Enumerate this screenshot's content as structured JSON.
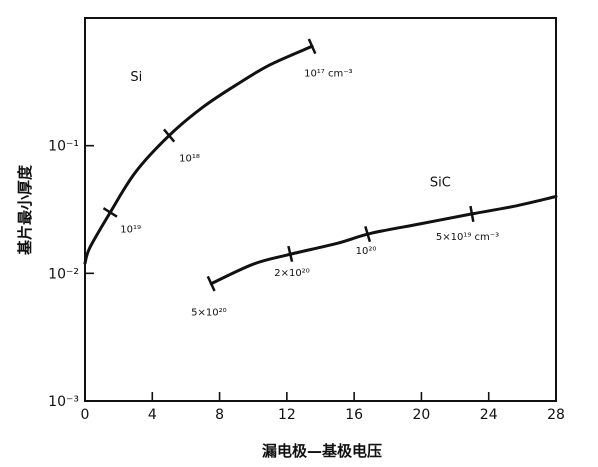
{
  "chart_data": {
    "type": "line",
    "xlabel": "漏电极—基极电压",
    "ylabel": "基片最小厚度",
    "xlim": [
      0,
      28
    ],
    "ylim": [
      0.001,
      1
    ],
    "y_scale": "log",
    "grid": false,
    "x_ticks": [
      {
        "value": 0,
        "label": "0"
      },
      {
        "value": 4,
        "label": "4"
      },
      {
        "value": 8,
        "label": "8"
      },
      {
        "value": 12,
        "label": "12"
      },
      {
        "value": 16,
        "label": "16"
      },
      {
        "value": 20,
        "label": "20"
      },
      {
        "value": 24,
        "label": "24"
      },
      {
        "value": 28,
        "label": "28"
      }
    ],
    "y_ticks": [
      {
        "value": 0.1,
        "label": "10⁻¹"
      },
      {
        "value": 0.01,
        "label": "10⁻²"
      },
      {
        "value": 0.001,
        "label": "10⁻³"
      }
    ],
    "series": [
      {
        "name": "Si",
        "color": "#111111",
        "x": [
          0,
          0.3,
          1.5,
          3.0,
          5.0,
          7.0,
          9.0,
          11.0,
          13.5
        ],
        "y": [
          0.012,
          0.016,
          0.03,
          0.062,
          0.12,
          0.2,
          0.3,
          0.43,
          0.6
        ],
        "markers": [
          {
            "x": 1.5,
            "y": 0.03,
            "label": "10¹⁹"
          },
          {
            "x": 5.0,
            "y": 0.12,
            "label": "10¹⁸"
          },
          {
            "x": 13.5,
            "y": 0.6,
            "label": "10¹⁷ cm⁻³"
          }
        ]
      },
      {
        "name": "SiC",
        "color": "#111111",
        "x": [
          7.5,
          10,
          12,
          15,
          17,
          20,
          23,
          25.5,
          28
        ],
        "y": [
          0.0083,
          0.0118,
          0.0139,
          0.0172,
          0.0206,
          0.0245,
          0.0292,
          0.0335,
          0.04
        ],
        "markers": [
          {
            "x": 7.5,
            "y": 0.0083,
            "label": "5×10²⁰"
          },
          {
            "x": 12.2,
            "y": 0.0142,
            "label": "2×10²⁰"
          },
          {
            "x": 16.8,
            "y": 0.0203,
            "label": "10²⁰"
          },
          {
            "x": 23.0,
            "y": 0.0292,
            "label": "5×10¹⁹ cm⁻³"
          }
        ]
      }
    ]
  }
}
